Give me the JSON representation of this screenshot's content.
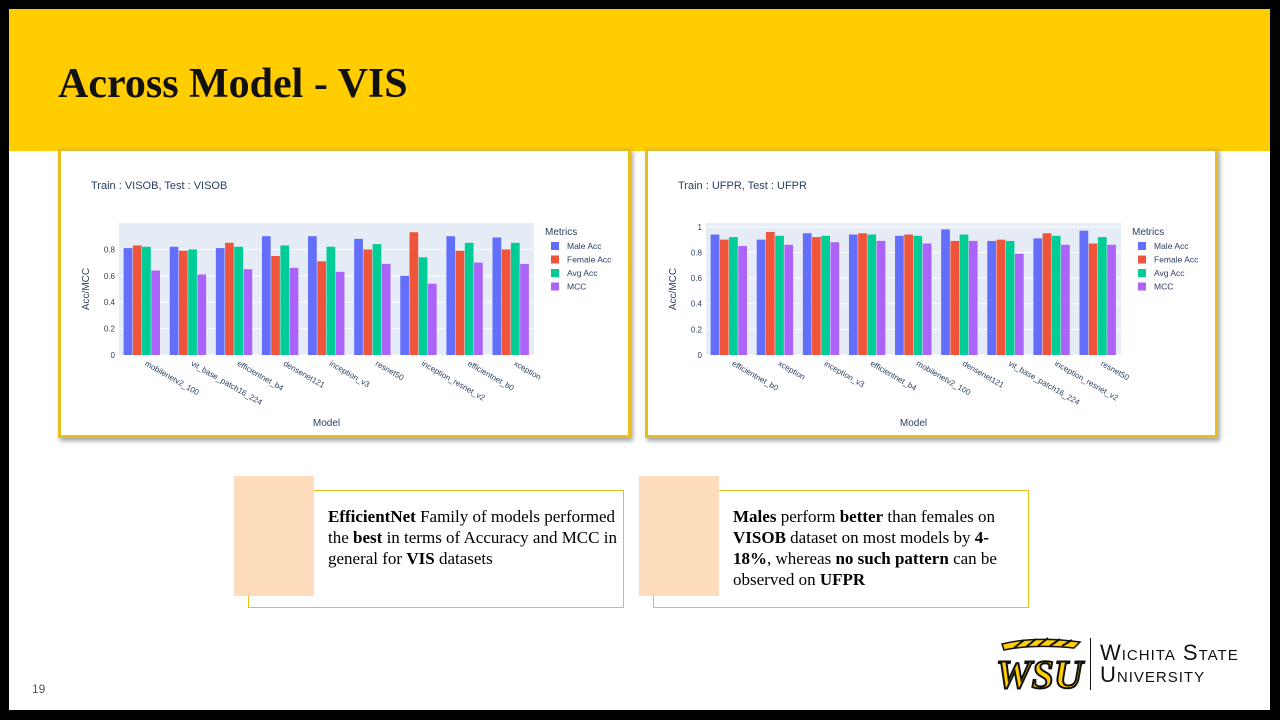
{
  "slide": {
    "title": "Across Model - VIS",
    "page_number": "19"
  },
  "chart_data": [
    {
      "type": "bar",
      "title": "Train : VISOB, Test : VISOB",
      "xlabel": "Model",
      "ylabel": "Acc/MCC",
      "ylim": [
        0,
        1
      ],
      "yticks": [
        "0",
        "0.2",
        "0.4",
        "0.6",
        "0.8"
      ],
      "legend_title": "Metrics",
      "legend_position": "right",
      "categories": [
        "mobilenetv2_100",
        "vit_base_patch16_224",
        "efficientnet_b4",
        "densenet121",
        "inception_v3",
        "resnet50",
        "inception_resnet_v2",
        "efficientnet_b0",
        "xception"
      ],
      "series": [
        {
          "name": "Male Acc",
          "color": "#636EFA",
          "values": [
            0.81,
            0.82,
            0.81,
            0.9,
            0.9,
            0.88,
            0.6,
            0.9,
            0.89
          ]
        },
        {
          "name": "Female Acc",
          "color": "#EF553B",
          "values": [
            0.83,
            0.79,
            0.85,
            0.75,
            0.71,
            0.8,
            0.93,
            0.79,
            0.8
          ]
        },
        {
          "name": "Avg Acc",
          "color": "#00CC96",
          "values": [
            0.82,
            0.8,
            0.82,
            0.83,
            0.82,
            0.84,
            0.74,
            0.85,
            0.85
          ]
        },
        {
          "name": "MCC",
          "color": "#AB63FA",
          "values": [
            0.64,
            0.61,
            0.65,
            0.66,
            0.63,
            0.69,
            0.54,
            0.7,
            0.69
          ]
        }
      ]
    },
    {
      "type": "bar",
      "title": "Train : UFPR, Test : UFPR",
      "xlabel": "Model",
      "ylabel": "Acc/MCC",
      "ylim": [
        0,
        1.03
      ],
      "yticks": [
        "0",
        "0.2",
        "0.4",
        "0.6",
        "0.8",
        "1"
      ],
      "legend_title": "Metrics",
      "legend_position": "right",
      "categories": [
        "efficientnet_b0",
        "xception",
        "inception_v3",
        "efficientnet_b4",
        "mobilenetv2_100",
        "densenet121",
        "vit_base_patch16_224",
        "inception_resnet_v2",
        "resnet50"
      ],
      "series": [
        {
          "name": "Male Acc",
          "color": "#636EFA",
          "values": [
            0.94,
            0.9,
            0.95,
            0.94,
            0.93,
            0.98,
            0.89,
            0.91,
            0.97
          ]
        },
        {
          "name": "Female Acc",
          "color": "#EF553B",
          "values": [
            0.9,
            0.96,
            0.92,
            0.95,
            0.94,
            0.89,
            0.9,
            0.95,
            0.87
          ]
        },
        {
          "name": "Avg Acc",
          "color": "#00CC96",
          "values": [
            0.92,
            0.93,
            0.93,
            0.94,
            0.93,
            0.94,
            0.89,
            0.93,
            0.92
          ]
        },
        {
          "name": "MCC",
          "color": "#AB63FA",
          "values": [
            0.85,
            0.86,
            0.88,
            0.89,
            0.87,
            0.89,
            0.79,
            0.86,
            0.86
          ]
        }
      ]
    }
  ],
  "callouts": [
    {
      "runs": [
        {
          "text": "EfficientNet",
          "bold": true
        },
        {
          "text": " Family of models performed the ",
          "bold": false
        },
        {
          "text": "best",
          "bold": true
        },
        {
          "text": " in terms of Accuracy and MCC in general for ",
          "bold": false
        },
        {
          "text": "VIS",
          "bold": true
        },
        {
          "text": " datasets",
          "bold": false
        }
      ]
    },
    {
      "runs": [
        {
          "text": "Males",
          "bold": true
        },
        {
          "text": " perform ",
          "bold": false
        },
        {
          "text": "better",
          "bold": true
        },
        {
          "text": " than females on ",
          "bold": false
        },
        {
          "text": "VISOB",
          "bold": true
        },
        {
          "text": " dataset on most models by ",
          "bold": false
        },
        {
          "text": "4-18%",
          "bold": true
        },
        {
          "text": ", whereas ",
          "bold": false
        },
        {
          "text": "no such pattern",
          "bold": true
        },
        {
          "text": " can be observed on ",
          "bold": false
        },
        {
          "text": "UFPR",
          "bold": true
        }
      ]
    }
  ],
  "logo": {
    "mark": "WSU",
    "name_line1": "Wichita State",
    "name_line2": "University",
    "accent_color": "#FFCD00"
  }
}
